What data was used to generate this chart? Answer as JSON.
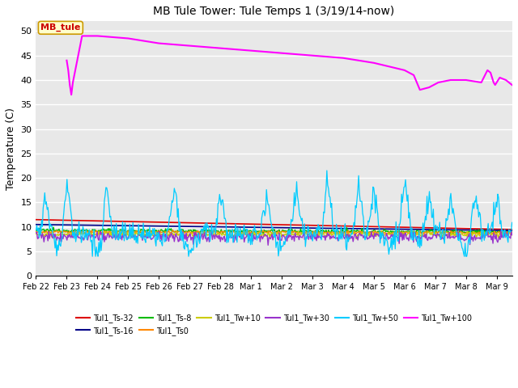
{
  "title": "MB Tule Tower: Tule Temps 1 (3/19/14-now)",
  "ylabel": "Temperature (C)",
  "ylim": [
    0,
    52
  ],
  "yticks": [
    0,
    5,
    10,
    15,
    20,
    25,
    30,
    35,
    40,
    45,
    50
  ],
  "xlim": [
    0,
    15.5
  ],
  "bg_color": "#e8e8e8",
  "grid_color": "#ffffff",
  "series_colors": {
    "Tul1_Ts-32": "#dd0000",
    "Tul1_Ts-16": "#000088",
    "Tul1_Ts-8": "#00bb00",
    "Tul1_Ts0": "#ff8800",
    "Tul1_Tw+10": "#cccc00",
    "Tul1_Tw+30": "#9933cc",
    "Tul1_Tw+50": "#00ccff",
    "Tul1_Tw+100": "#ff00ff"
  },
  "mb_tule_x": [
    1.0,
    1.05,
    1.1,
    1.15,
    1.2,
    1.5,
    2.0,
    3.0,
    4.0,
    5.0,
    6.0,
    7.0,
    8.0,
    9.0,
    10.0,
    11.0,
    12.0,
    12.3,
    12.5,
    12.8,
    13.1,
    13.5,
    14.0,
    14.5,
    14.7,
    14.8,
    14.85,
    14.9,
    14.95,
    15.0,
    15.1,
    15.3,
    15.5
  ],
  "mb_tule_y": [
    44,
    42,
    39,
    37.0,
    39.5,
    49.0,
    49.0,
    48.5,
    47.5,
    47.0,
    46.5,
    46.0,
    45.5,
    45.0,
    44.5,
    43.5,
    42.0,
    41.0,
    38.0,
    38.5,
    39.5,
    40.0,
    40.0,
    39.5,
    42.0,
    41.5,
    40.5,
    39.5,
    39.0,
    39.5,
    40.5,
    40.0,
    39.0
  ],
  "annotation_label": "MB_tule",
  "annotation_color": "#cc0000",
  "annotation_bg": "#ffffcc",
  "annotation_border": "#cc9900",
  "xtick_labels": [
    "Feb 22",
    "Feb 23",
    "Feb 24",
    "Feb 25",
    "Feb 26",
    "Feb 27",
    "Feb 28",
    "Mar 1",
    "Mar 2",
    "Mar 3",
    "Mar 4",
    "Mar 5",
    "Mar 6",
    "Mar 7",
    "Mar 8",
    "Mar 9"
  ],
  "figsize": [
    6.4,
    4.8
  ],
  "dpi": 100
}
